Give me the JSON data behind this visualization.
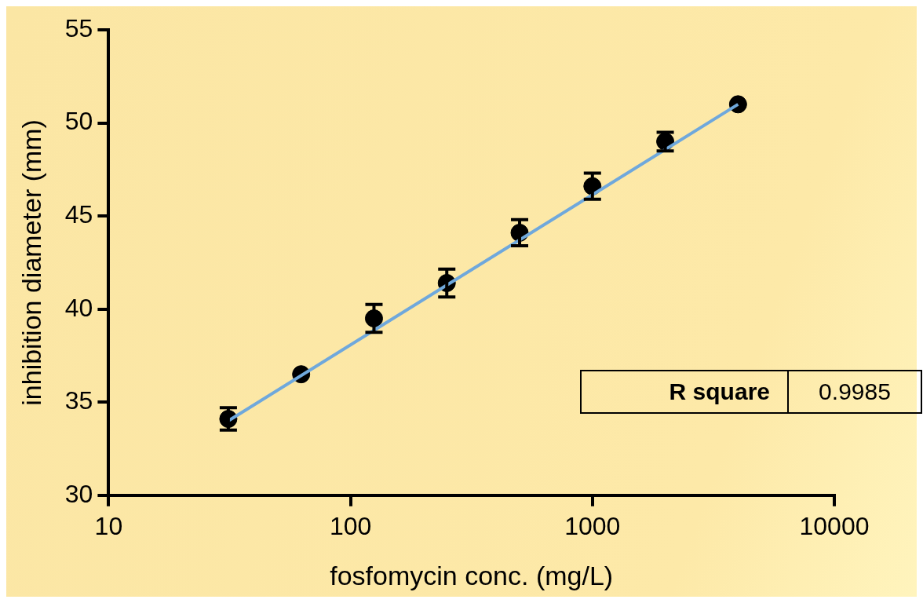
{
  "chart_data": {
    "type": "scatter",
    "xlabel": "fosfomycin conc. (mg/L)",
    "ylabel": "inhibition diameter (mm)",
    "log": "x",
    "xlim": [
      10,
      10000
    ],
    "xticks": [
      10,
      100,
      1000,
      10000
    ],
    "ylim": [
      30,
      55
    ],
    "yticks": [
      30,
      35,
      40,
      45,
      50,
      55
    ],
    "grid": false,
    "legend": false,
    "marker": "circle",
    "annotations": [
      "R square",
      "0.9985"
    ],
    "series": [
      {
        "type": "line",
        "color": "#6fa8dc",
        "x": [
          31.25,
          4000
        ],
        "values": [
          34.0,
          51.0
        ],
        "marker": "none",
        "line_style": "solid"
      },
      {
        "type": "scatter",
        "color": "#000000",
        "x": [
          31.25,
          62.5,
          125,
          250,
          500,
          1000,
          2000,
          4000
        ],
        "values": [
          34.1,
          36.5,
          39.5,
          41.4,
          44.1,
          46.6,
          49.0,
          51.0
        ],
        "errors": [
          0.6,
          null,
          0.75,
          0.75,
          0.7,
          0.7,
          0.5,
          null
        ]
      }
    ]
  }
}
